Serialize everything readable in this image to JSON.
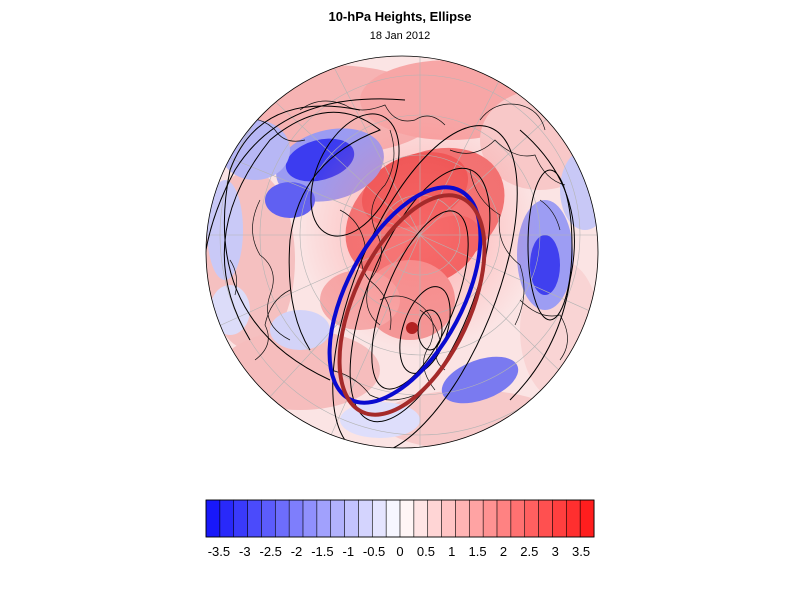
{
  "title": "10-hPa Heights, Ellipse",
  "subtitle": "18 Jan 2012",
  "colors": {
    "blue_ellipse": "#0a0ad0",
    "red_ellipse": "#a52a2a",
    "centroid": "#b22222",
    "contour": "#000000",
    "graticule": "#aaaaaa",
    "coast": "#000000"
  },
  "colorbar": {
    "tick_labels": [
      "-3.5",
      "-3",
      "-2.5",
      "-2",
      "-1.5",
      "-1",
      "-0.5",
      "0",
      "0.5",
      "1",
      "1.5",
      "2",
      "2.5",
      "3",
      "3.5"
    ],
    "range": [
      -3.75,
      3.75
    ],
    "bins": 28
  }
}
